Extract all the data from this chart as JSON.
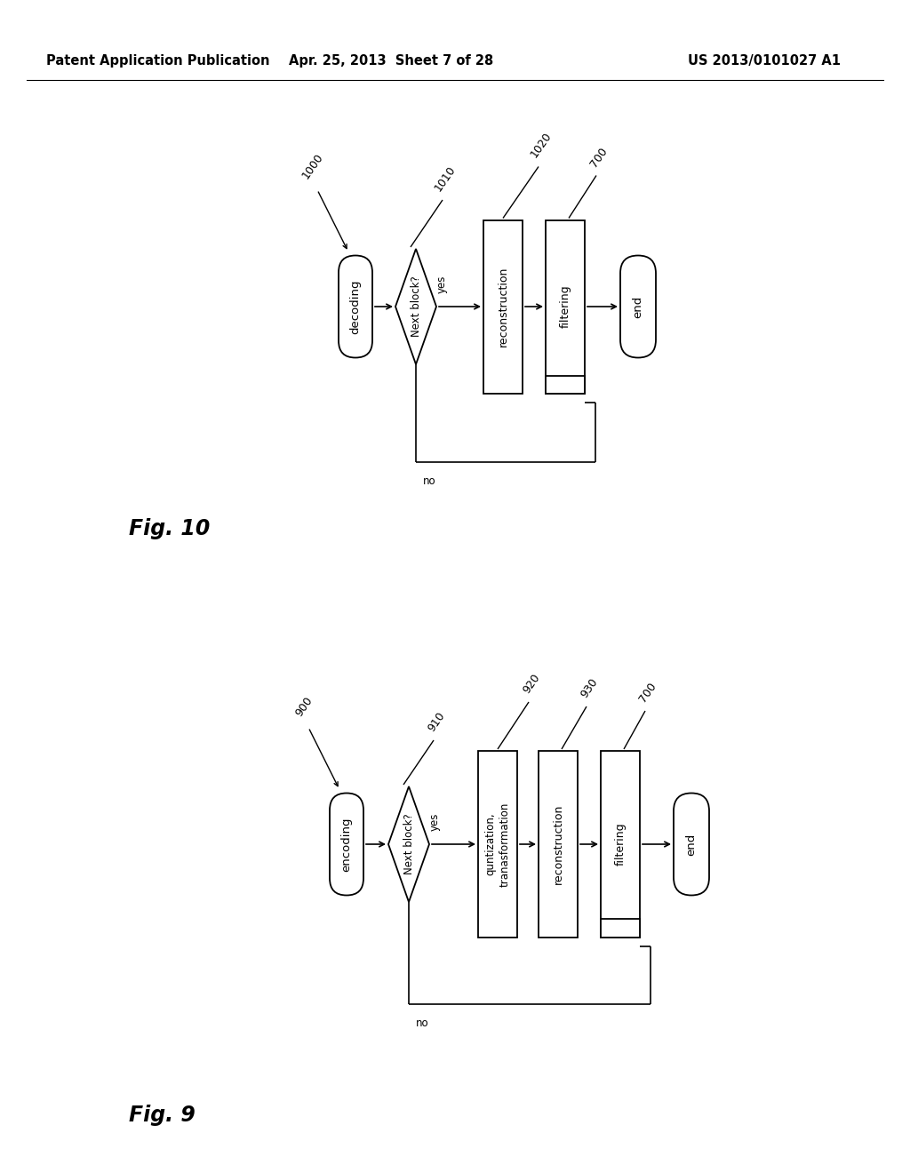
{
  "header_left": "Patent Application Publication",
  "header_center": "Apr. 25, 2013  Sheet 7 of 28",
  "header_right": "US 2013/0101027 A1",
  "fig10": {
    "fig_label": "Fig. 10",
    "labels": {
      "ref_start": "1000",
      "ref_diamond": "1010",
      "ref_rect1": "1020",
      "ref_rect2": "700",
      "start": "decoding",
      "diamond": "Next block?",
      "yes": "yes",
      "no": "no",
      "rect1": "reconstruction",
      "rect2": "filtering",
      "end": "end"
    }
  },
  "fig9": {
    "fig_label": "Fig. 9",
    "labels": {
      "ref_start": "900",
      "ref_diamond": "910",
      "ref_rect1": "920",
      "ref_rect2": "930",
      "ref_rect3": "700",
      "start": "encoding",
      "diamond": "Next block?",
      "yes": "yes",
      "no": "no",
      "rect1": "quntization,\ntranasformation",
      "rect2": "reconstruction",
      "rect3": "filtering",
      "end": "end"
    }
  },
  "bg_color": "#ffffff",
  "line_color": "#000000",
  "text_color": "#000000"
}
